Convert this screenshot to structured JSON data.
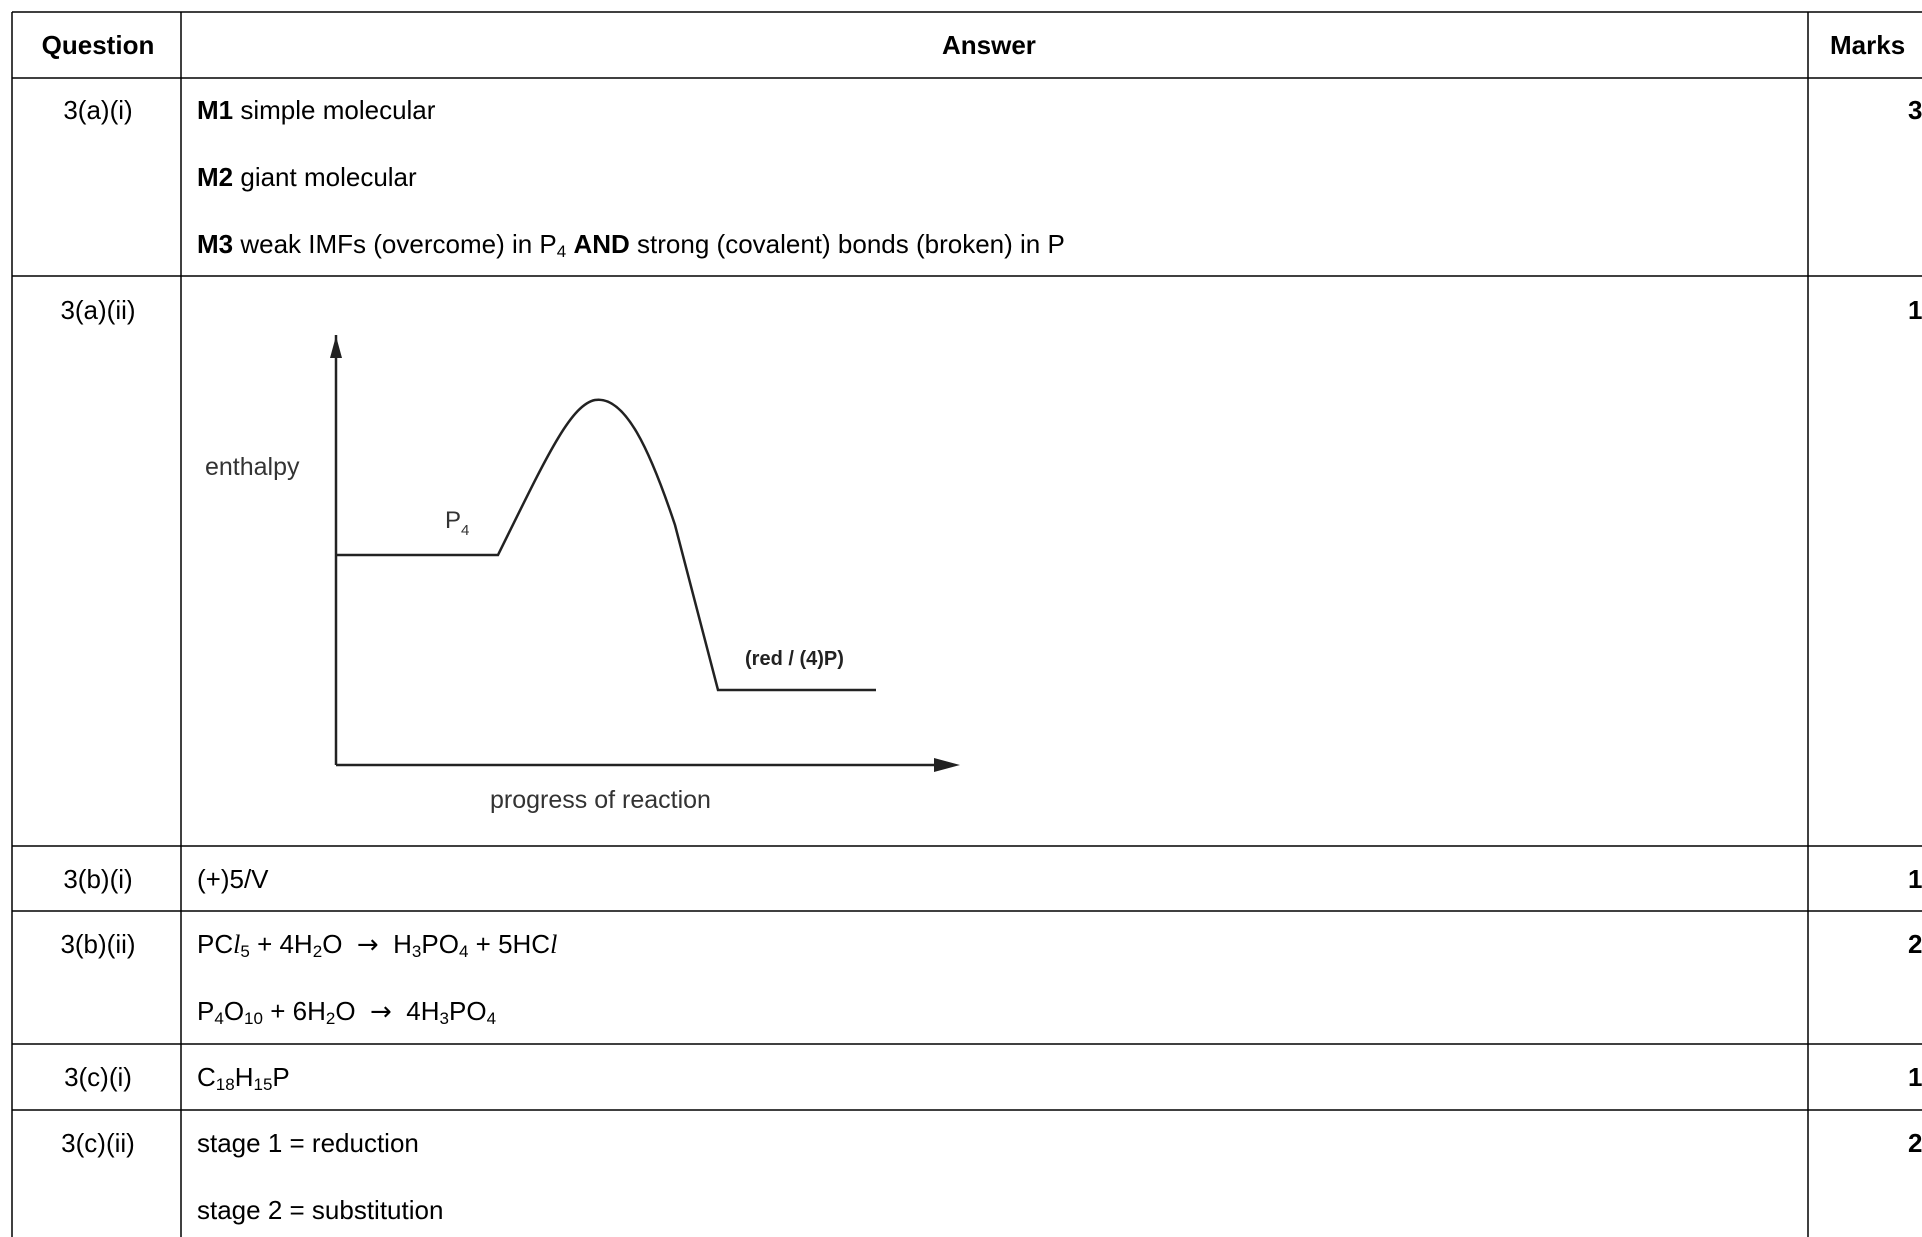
{
  "header": {
    "question": "Question",
    "answer": "Answer",
    "marks": "Marks"
  },
  "rows": [
    {
      "q": "3(a)(i)",
      "marks": "3",
      "m1_label": "M1",
      "m1_text": "simple molecular",
      "m2_label": "M2",
      "m2_text": "giant molecular",
      "m3_label": "M3",
      "m3_pre": "weak IMFs (overcome) in P",
      "m3_sub": "4",
      "m3_and": "AND",
      "m3_post": "strong (covalent) bonds (broken) in P"
    },
    {
      "q": "3(a)(ii)",
      "marks": "1",
      "diagram": {
        "ylabel": "enthalpy",
        "xlabel": "progress of reaction",
        "reactant": "P",
        "reactant_sub": "4",
        "product": "(red / (4)P)"
      }
    },
    {
      "q": "3(b)(i)",
      "marks": "1",
      "text": "(+)5/V"
    },
    {
      "q": "3(b)(ii)",
      "marks": "2",
      "eq1": {
        "a": "PC",
        "a_it": "l",
        "a_sub": "5",
        "b": "+ 4H",
        "b_sub": "2",
        "c": "O",
        "arrow": "→",
        "d": "H",
        "d_sub": "3",
        "e": "PO",
        "e_sub": "4",
        "f": "+ 5HC",
        "f_it": "l"
      },
      "eq2": {
        "a": "P",
        "a_sub": "4",
        "b": "O",
        "b_sub": "10",
        "c": "+ 6H",
        "c_sub": "2",
        "d": "O",
        "arrow": "→",
        "e": "4H",
        "e_sub": "3",
        "f": "PO",
        "f_sub": "4"
      }
    },
    {
      "q": "3(c)(i)",
      "marks": "1",
      "f": {
        "a": "C",
        "a_sub": "18",
        "b": "H",
        "b_sub": "15",
        "c": "P"
      }
    },
    {
      "q": "3(c)(ii)",
      "marks": "2",
      "line1": "stage 1 = reduction",
      "line2": "stage 2 = substitution"
    }
  ]
}
